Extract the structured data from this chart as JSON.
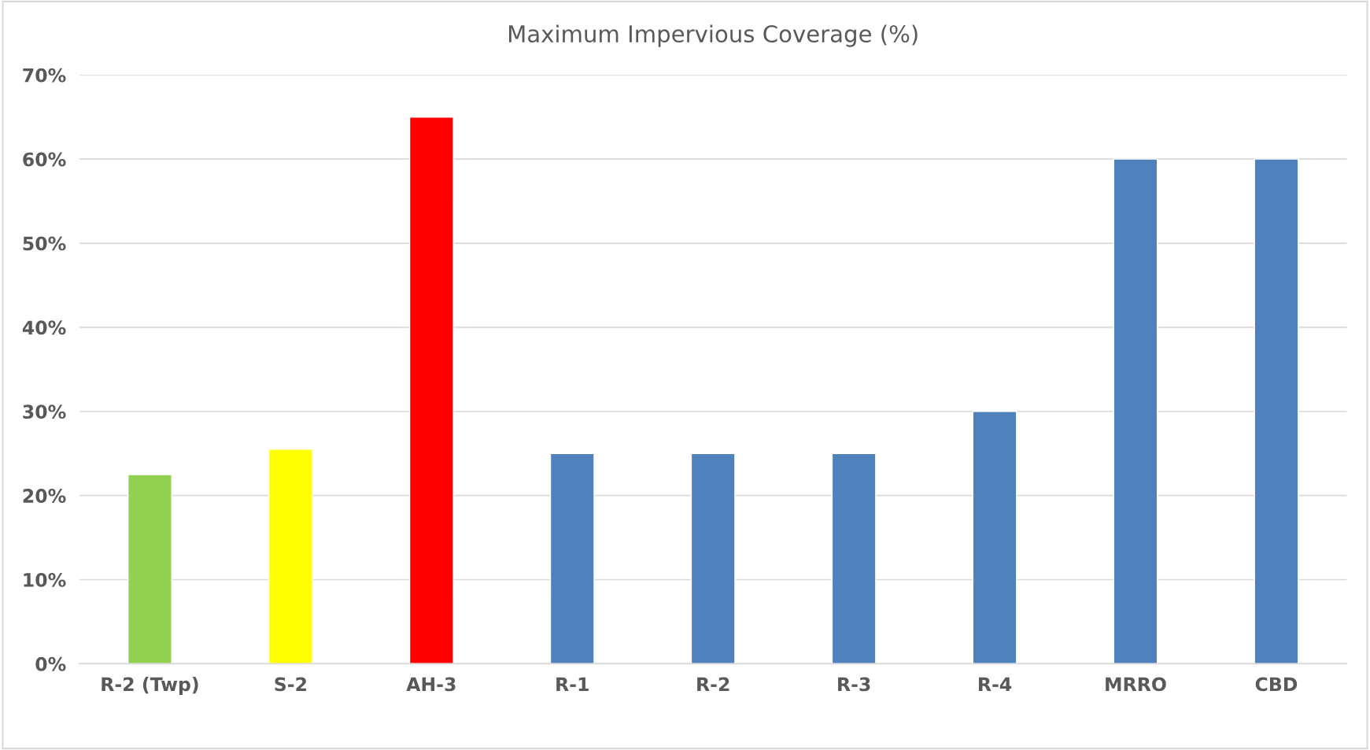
{
  "chart_data": {
    "type": "bar",
    "title": "Maximum Impervious Coverage (%)",
    "categories": [
      "R-2 (Twp)",
      "S-2",
      "AH-3",
      "R-1",
      "R-2",
      "R-3",
      "R-4",
      "MRRO",
      "CBD"
    ],
    "values": [
      22.5,
      25.5,
      65,
      25,
      25,
      25,
      30,
      60,
      60
    ],
    "colors": [
      "#92d050",
      "#ffff00",
      "#ff0000",
      "#4f81bd",
      "#4f81bd",
      "#4f81bd",
      "#4f81bd",
      "#4f81bd",
      "#4f81bd"
    ],
    "ylim": [
      0,
      70
    ],
    "yticks": [
      {
        "value": 0,
        "label": "0%"
      },
      {
        "value": 10,
        "label": "10%"
      },
      {
        "value": 20,
        "label": "20%"
      },
      {
        "value": 30,
        "label": "30%"
      },
      {
        "value": 40,
        "label": "40%"
      },
      {
        "value": 50,
        "label": "50%"
      },
      {
        "value": 60,
        "label": "60%"
      },
      {
        "value": 70,
        "label": "70%"
      }
    ],
    "grid": "y"
  }
}
